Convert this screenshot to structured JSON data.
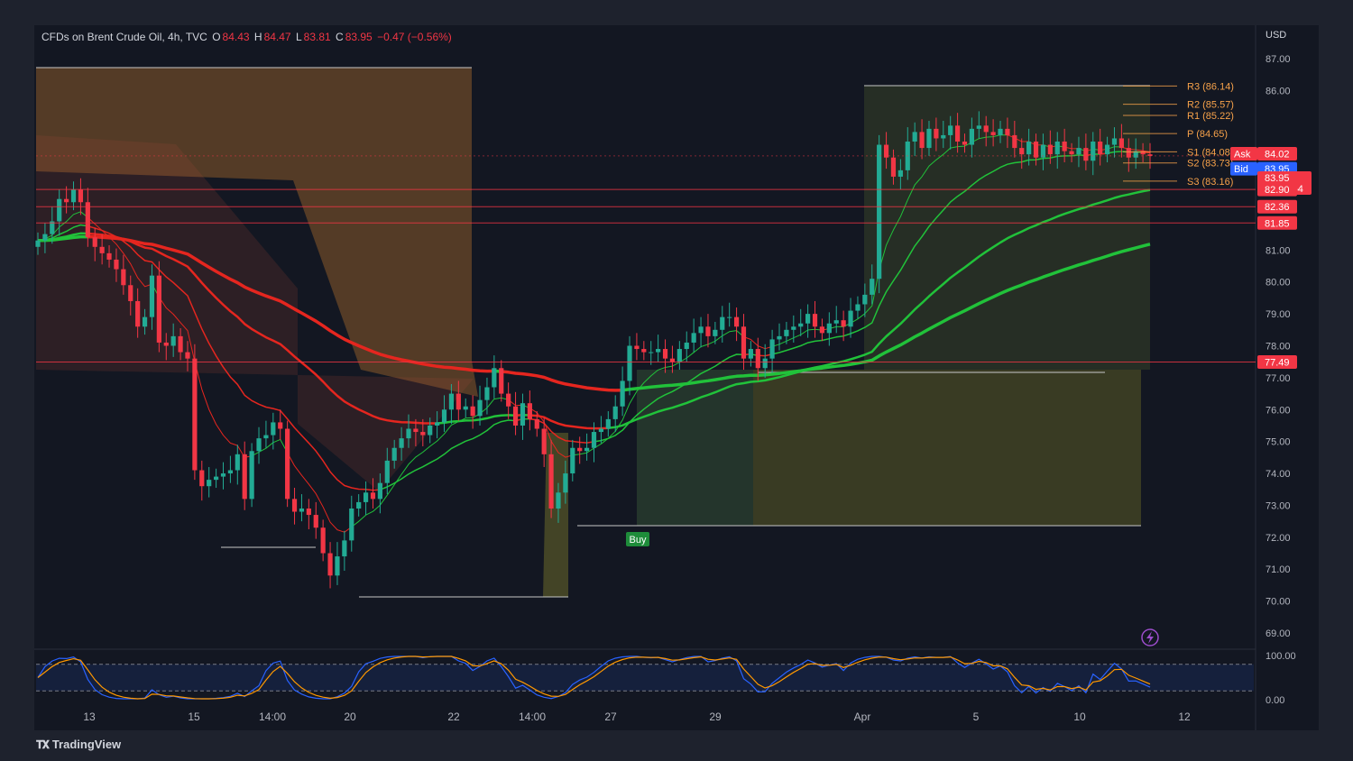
{
  "header": {
    "symbol_line": "CFDs on Brent Crude Oil, 4h, TVC",
    "o_label": "O",
    "o_value": "84.43",
    "h_label": "H",
    "h_value": "84.47",
    "l_label": "L",
    "l_value": "83.81",
    "c_label": "C",
    "c_value": "83.95",
    "change": "−0.47 (−0.56%)"
  },
  "currency": "USD",
  "branding": "TradingView",
  "buy_signal_label": "Buy",
  "colors": {
    "background": "#131722",
    "up": "#22ab94",
    "down": "#f23645",
    "ema_red": "#e5261f",
    "ema_green": "#21c23a",
    "pivot": "#f7a24a",
    "hline": "#f23645"
  },
  "chart_data": [
    {
      "type": "candlestick",
      "title": "",
      "x_ticks": [
        "13",
        "15",
        "14:00",
        "20",
        "22",
        "14:00",
        "27",
        "29",
        "Apr",
        "5",
        "10",
        "12"
      ],
      "y_ticks": [
        "87.00",
        "86.00",
        "81.00",
        "80.00",
        "79.00",
        "78.00",
        "77.00",
        "76.00",
        "75.00",
        "74.00",
        "73.00",
        "72.00",
        "71.00",
        "70.00",
        "69.00"
      ],
      "ylim": [
        68.5,
        87.5
      ],
      "price_scale_labels": [
        {
          "text": "84.02",
          "tag": "Ask",
          "price": 84.02,
          "color": "#f23645"
        },
        {
          "text": "83.95",
          "tag": "Bid",
          "price": 83.55,
          "color": "#2962ff"
        },
        {
          "text": "83.95",
          "sub": "02:43:54",
          "price": 83.1,
          "color": "#f23645"
        },
        {
          "text": "82.90",
          "price": 82.9,
          "color": "#f23645"
        },
        {
          "text": "82.36",
          "price": 82.36,
          "color": "#f23645"
        },
        {
          "text": "81.85",
          "price": 81.85,
          "color": "#f23645"
        },
        {
          "text": "77.49",
          "price": 77.49,
          "color": "#f23645"
        }
      ],
      "horizontal_levels": [
        83.95,
        82.9,
        82.36,
        81.85,
        77.49
      ],
      "pivots": [
        {
          "label": "R3 (86.14)",
          "value": 86.14
        },
        {
          "label": "R2 (85.57)",
          "value": 85.57
        },
        {
          "label": "R1 (85.22)",
          "value": 85.22
        },
        {
          "label": "P (84.65)",
          "value": 84.65
        },
        {
          "label": "S1 (84.08)",
          "value": 84.08
        },
        {
          "label": "S2 (83.73)",
          "value": 83.73
        },
        {
          "label": "S3 (83.16)",
          "value": 83.16
        }
      ],
      "candles_close": [
        81.3,
        81.5,
        81.9,
        82.6,
        82.5,
        82.9,
        82.5,
        81.4,
        81.1,
        80.9,
        80.7,
        80.4,
        79.9,
        79.4,
        78.6,
        78.9,
        80.2,
        78.1,
        78.0,
        78.3,
        77.8,
        77.6,
        74.1,
        73.6,
        73.8,
        73.9,
        74.0,
        74.1,
        74.6,
        73.2,
        74.7,
        75.1,
        75.2,
        75.6,
        75.4,
        73.2,
        72.8,
        72.9,
        72.7,
        72.3,
        71.5,
        70.8,
        71.4,
        71.9,
        72.9,
        73.1,
        73.4,
        73.2,
        73.7,
        74.4,
        74.8,
        75.1,
        75.4,
        75.3,
        75.2,
        75.5,
        75.6,
        76.0,
        76.5,
        76.0,
        76.1,
        75.8,
        76.3,
        76.7,
        77.3,
        76.5,
        76.1,
        75.5,
        76.2,
        75.7,
        75.4,
        74.6,
        72.9,
        73.4,
        74.0,
        74.8,
        74.7,
        74.8,
        75.3,
        75.4,
        75.7,
        76.1,
        76.9,
        78.0,
        77.9,
        77.8,
        77.8,
        77.9,
        77.6,
        77.5,
        77.9,
        78.1,
        78.4,
        78.6,
        78.3,
        78.5,
        78.9,
        78.9,
        78.6,
        77.6,
        77.9,
        77.3,
        77.6,
        78.2,
        78.3,
        78.5,
        78.6,
        78.7,
        79.0,
        78.6,
        78.4,
        78.7,
        78.8,
        78.6,
        79.1,
        79.3,
        79.6,
        80.1,
        84.3,
        83.9,
        83.3,
        83.5,
        84.4,
        84.7,
        84.2,
        84.8,
        84.5,
        84.6,
        84.9,
        84.4,
        84.3,
        84.8,
        84.9,
        84.7,
        84.6,
        84.8,
        84.6,
        84.2,
        84.0,
        84.4,
        83.9,
        84.3,
        84.0,
        84.4,
        84.1,
        84.0,
        84.2,
        83.8,
        84.4,
        84.0,
        84.3,
        84.5,
        84.2,
        83.9,
        84.1,
        84.0,
        83.95
      ]
    },
    {
      "type": "line",
      "title": "",
      "y_ticks": [
        "100.00",
        "0.00"
      ],
      "ylim": [
        0,
        100
      ],
      "bands": [
        80,
        20
      ]
    }
  ]
}
